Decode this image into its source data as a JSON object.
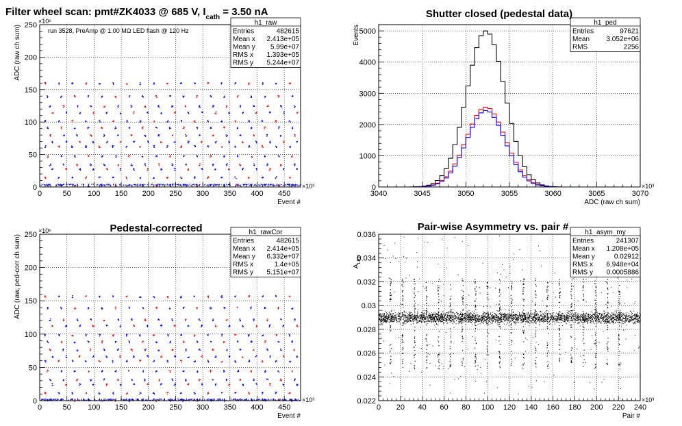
{
  "chart_data": [
    {
      "type": "scatter",
      "title": "Filter wheel scan: pmt#ZK4033 @   685 V, I",
      "title_sub": "cath",
      "title_tail": " = 3.50 nA",
      "annotation": "run 3528, PreAmp @ 1.00 MΩ  LED flash @  120 Hz",
      "xlabel": "Event #",
      "ylabel": "ADC (raw ch sum)",
      "x_exponent": "×10³",
      "y_exponent": "×10⁶",
      "xlim": [
        0,
        480
      ],
      "ylim": [
        0,
        250
      ],
      "x_ticks": [
        "0",
        "50",
        "100",
        "150",
        "200",
        "250",
        "300",
        "350",
        "400",
        "450"
      ],
      "y_ticks": [
        "0",
        "50",
        "100",
        "150",
        "200",
        "250"
      ],
      "grid": true,
      "series_colors": [
        "#ff0000",
        "#0000ff"
      ],
      "levels": [
        160,
        140,
        125,
        115,
        102,
        92,
        80,
        70,
        63,
        48,
        35,
        28,
        15,
        3
      ],
      "stats_box": {
        "name": "h1_raw",
        "rows": [
          {
            "label": "Entries",
            "value": "482615"
          },
          {
            "label": "Mean x",
            "value": "2.413e+05"
          },
          {
            "label": "Mean y",
            "value": "5.99e+07"
          },
          {
            "label": "RMS x",
            "value": "1.393e+05"
          },
          {
            "label": "RMS y",
            "value": "5.244e+07"
          }
        ]
      }
    },
    {
      "type": "line",
      "title": "Shutter closed (pedestal data)",
      "xlabel": "ADC (raw ch sum)",
      "ylabel": "Events",
      "x_exponent": "×10³",
      "xlim": [
        3040,
        3070
      ],
      "ylim": [
        0,
        5200
      ],
      "x_ticks": [
        "3040",
        "3045",
        "3050",
        "3055",
        "3060",
        "3065",
        "3070"
      ],
      "y_ticks": [
        "0",
        "1000",
        "2000",
        "3000",
        "4000",
        "5000"
      ],
      "grid": true,
      "mean": 3052.3,
      "series": [
        {
          "color": "#000000",
          "sigma": 2.2,
          "peak": 5000
        },
        {
          "color": "#ff0000",
          "sigma": 2.25,
          "peak": 2560
        },
        {
          "color": "#0000ff",
          "sigma": 2.2,
          "peak": 2450
        }
      ],
      "stats_box": {
        "name": "h1_ped",
        "rows": [
          {
            "label": "Entries",
            "value": "97621"
          },
          {
            "label": "Mean",
            "value": "3.052e+06"
          },
          {
            "label": "RMS",
            "value": "2256"
          }
        ]
      }
    },
    {
      "type": "scatter",
      "title": "Pedestal-corrected",
      "xlabel": "Event #",
      "ylabel": "ADC (raw, ped-corr ch sum)",
      "x_exponent": "×10³",
      "y_exponent": "×10⁶",
      "xlim": [
        0,
        480
      ],
      "ylim": [
        0,
        250
      ],
      "x_ticks": [
        "0",
        "50",
        "100",
        "150",
        "200",
        "250",
        "300",
        "350",
        "400",
        "450"
      ],
      "y_ticks": [
        "0",
        "50",
        "100",
        "150",
        "200",
        "250"
      ],
      "grid": true,
      "series_colors": [
        "#ff0000",
        "#0000ff"
      ],
      "levels": [
        157,
        140,
        122,
        113,
        99,
        89,
        77,
        67,
        60,
        45,
        32,
        25,
        12,
        1
      ],
      "stats_box": {
        "name": "h1_rawCor",
        "rows": [
          {
            "label": "Entries",
            "value": "482615"
          },
          {
            "label": "Mean x",
            "value": "2.414e+05"
          },
          {
            "label": "Mean y",
            "value": "6.332e+07"
          },
          {
            "label": "RMS x",
            "value": "1.4e+05"
          },
          {
            "label": "RMS y",
            "value": "5.151e+07"
          }
        ]
      }
    },
    {
      "type": "scatter",
      "title": "Pair-wise Asymmetry vs. pair #",
      "xlabel": "Pair #",
      "ylabel": "A",
      "ylabel_sub": "LED",
      "x_exponent": "×10³",
      "xlim": [
        0,
        240
      ],
      "ylim": [
        0.022,
        0.036
      ],
      "x_ticks": [
        "0",
        "20",
        "40",
        "60",
        "80",
        "100",
        "120",
        "140",
        "160",
        "180",
        "200",
        "220",
        "240"
      ],
      "y_ticks": [
        "0.022",
        "0.024",
        "0.026",
        "0.028",
        "0.03",
        "0.032",
        "0.034",
        "0.036"
      ],
      "grid": true,
      "band_center": 0.029,
      "band_halfwidth": 0.0007,
      "spike_x": [
        10,
        21,
        32,
        43,
        54,
        65,
        76,
        88,
        99,
        110,
        121,
        132,
        143,
        154,
        165,
        176,
        187,
        198,
        209,
        220
      ],
      "stats_box": {
        "name": "h1_asym_my",
        "rows": [
          {
            "label": "Entries",
            "value": "241307"
          },
          {
            "label": "Mean x",
            "value": "1.208e+05"
          },
          {
            "label": "Mean y",
            "value": "0.02912"
          },
          {
            "label": "RMS x",
            "value": "6.948e+04"
          },
          {
            "label": "RMS y",
            "value": "0.0005886"
          }
        ]
      }
    }
  ]
}
